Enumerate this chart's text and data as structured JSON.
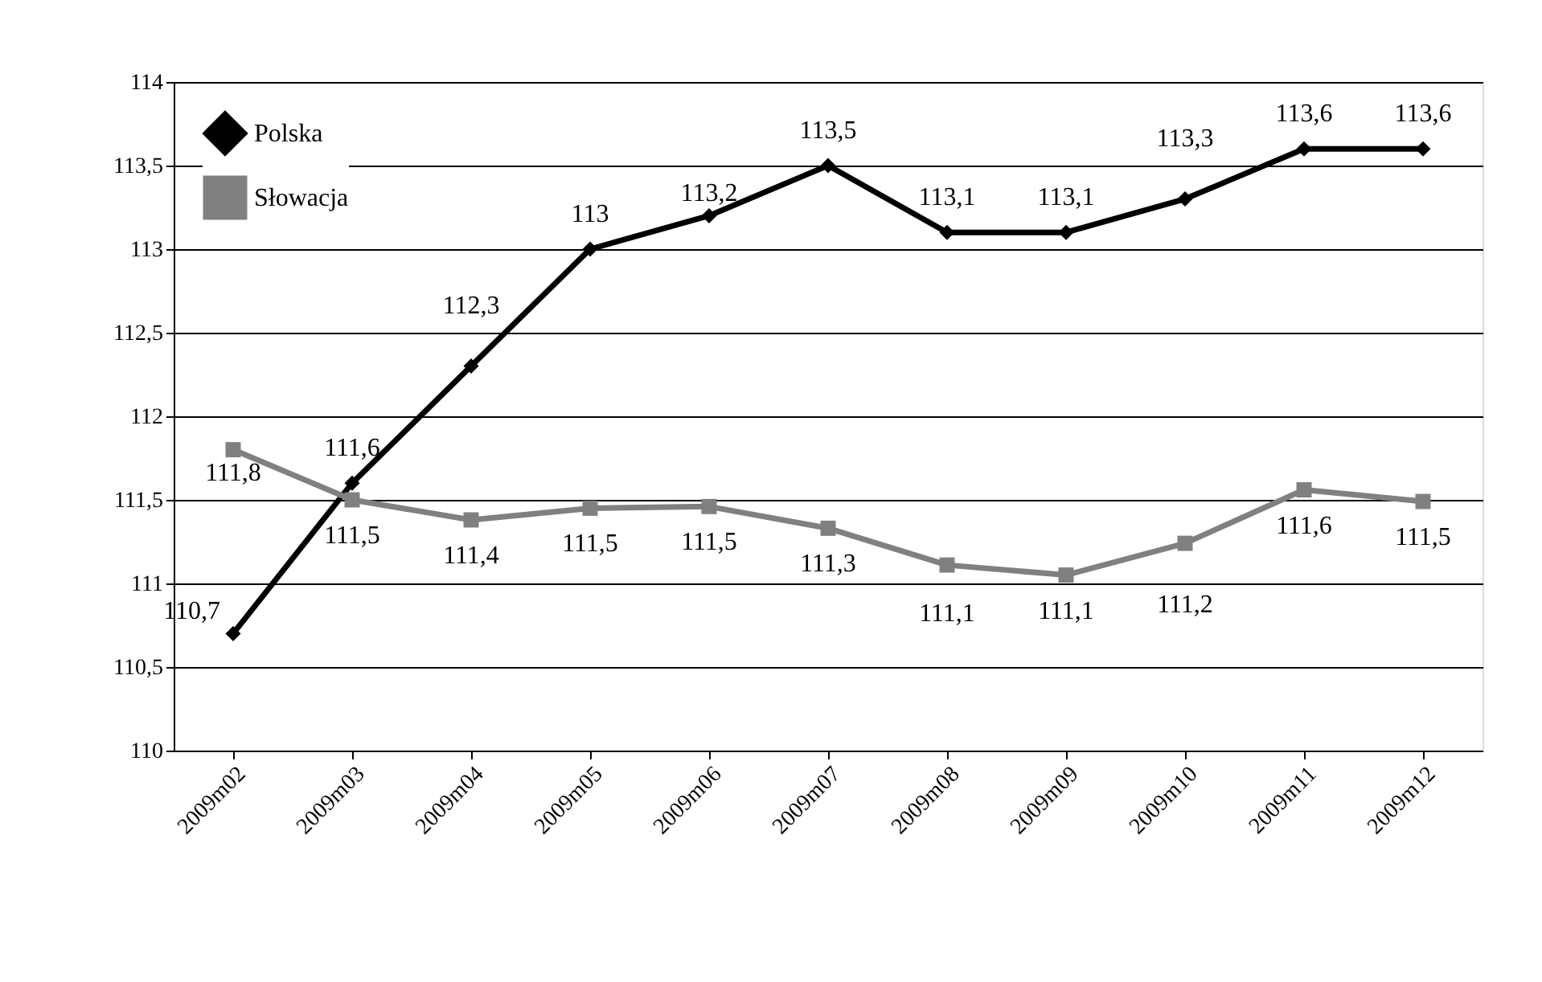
{
  "chart_data": {
    "type": "line",
    "categories": [
      "2009m02",
      "2009m03",
      "2009m04",
      "2009m05",
      "2009m06",
      "2009m07",
      "2009m08",
      "2009m09",
      "2009m10",
      "2009m11",
      "2009m12"
    ],
    "series": [
      {
        "name": "Polska",
        "color": "#000000",
        "marker": "diamond",
        "values": [
          110.7,
          111.6,
          112.3,
          113.0,
          113.2,
          113.5,
          113.1,
          113.1,
          113.3,
          113.6,
          113.6
        ],
        "value_labels": [
          "110,7",
          "111,6",
          "112,3",
          "113",
          "113,2",
          "113,5",
          "113,1",
          "113,1",
          "113,3",
          "113,6",
          "113,6"
        ]
      },
      {
        "name": "Słowacja",
        "color": "#808080",
        "marker": "square",
        "values": [
          111.8,
          111.5,
          111.38,
          111.45,
          111.46,
          111.33,
          111.11,
          111.05,
          111.24,
          111.56,
          111.49
        ],
        "value_labels": [
          "111,8",
          "111,5",
          "111,4",
          "111,5",
          "111,5",
          "111,3",
          "111,1",
          "111,1",
          "111,2",
          "111,6",
          "111,5"
        ]
      }
    ],
    "ylim": [
      110,
      114
    ],
    "yticks": [
      110,
      {
        "value": 110.5,
        "label": "110,5"
      },
      111,
      {
        "value": 111.5,
        "label": "111,5"
      },
      112,
      {
        "value": 112.5,
        "label": "112,5"
      },
      113,
      {
        "value": 113.5,
        "label": "113,5"
      },
      114
    ],
    "grid": "y",
    "legend": "top left",
    "line_style": "solid"
  }
}
